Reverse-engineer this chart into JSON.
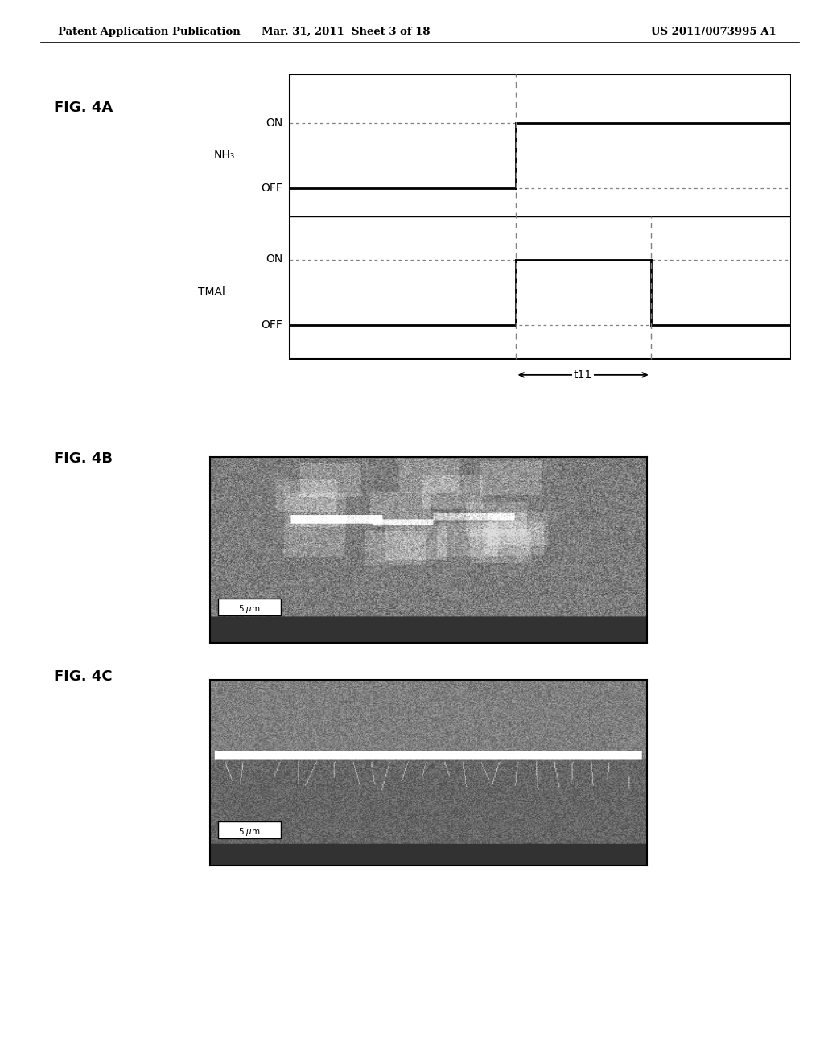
{
  "header_left": "Patent Application Publication",
  "header_mid": "Mar. 31, 2011  Sheet 3 of 18",
  "header_right": "US 2011/0073995 A1",
  "fig4a_label": "FIG. 4A",
  "fig4b_label": "FIG. 4B",
  "fig4c_label": "FIG. 4C",
  "nh3_label": "NH₃",
  "tmal_label": "TMAl",
  "on_label": "ON",
  "off_label": "OFF",
  "t11_label": "t11",
  "bg_color": "#ffffff",
  "line_color": "#000000",
  "text_color": "#000000"
}
